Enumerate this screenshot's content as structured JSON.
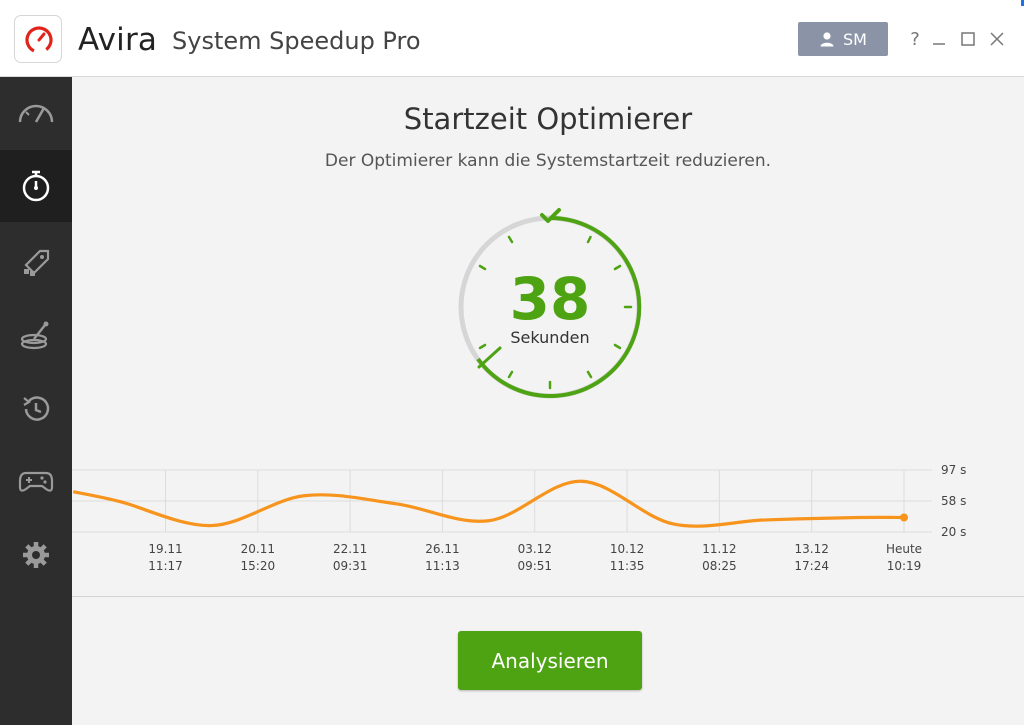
{
  "app": {
    "brand": "Avira",
    "product": "System Speedup Pro"
  },
  "user": {
    "initials": "SM"
  },
  "window_controls": {
    "help": "?",
    "minimize": "_"
  },
  "sidebar": {
    "items": [
      {
        "icon": "speedometer-icon",
        "active": false
      },
      {
        "icon": "stopwatch-icon",
        "active": true
      },
      {
        "icon": "rocket-windows-icon",
        "active": false
      },
      {
        "icon": "disk-cleanup-icon",
        "active": false
      },
      {
        "icon": "history-icon",
        "active": false
      },
      {
        "icon": "gamepad-icon",
        "active": false
      },
      {
        "icon": "gear-icon",
        "active": false
      }
    ]
  },
  "main": {
    "title": "Startzeit Optimierer",
    "subtitle": "Der Optimierer kann die Systemstartzeit reduzieren.",
    "gauge": {
      "value": "38",
      "unit": "Sekunden"
    },
    "analyze_button": "Analysieren"
  },
  "chart_data": {
    "type": "line",
    "categories": [
      [
        "19.11",
        "11:17"
      ],
      [
        "20.11",
        "15:20"
      ],
      [
        "22.11",
        "09:31"
      ],
      [
        "26.11",
        "11:13"
      ],
      [
        "03.12",
        "09:51"
      ],
      [
        "10.12",
        "11:35"
      ],
      [
        "11.12",
        "08:25"
      ],
      [
        "13.12",
        "17:24"
      ],
      [
        "Heute",
        "10:19"
      ]
    ],
    "values": [
      58,
      28,
      65,
      55,
      34,
      83,
      30,
      35,
      38
    ],
    "start_value": 70,
    "y_ticks": [
      "97 s",
      "58 s",
      "20 s"
    ],
    "ylim": [
      20,
      97
    ],
    "grid": true
  },
  "colors": {
    "accent_green": "#4ea313",
    "line_orange": "#f7941d",
    "sidebar_bg": "#2d2d2d",
    "user_button": "#8b93a7"
  }
}
